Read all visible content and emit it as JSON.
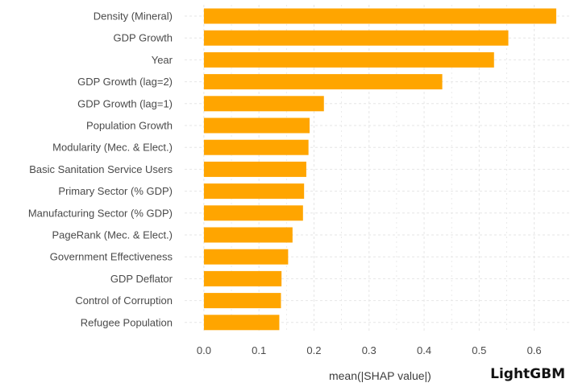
{
  "chart_data": {
    "type": "bar",
    "orientation": "horizontal",
    "categories": [
      "Density (Mineral)",
      "GDP Growth",
      "Year",
      "GDP Growth (lag=2)",
      "GDP Growth (lag=1)",
      "Population Growth",
      "Modularity (Mec. & Elect.)",
      "Basic Sanitation Service Users",
      "Primary Sector (% GDP)",
      "Manufacturing Sector (% GDP)",
      "PageRank (Mec. & Elect.)",
      "Government Effectiveness",
      "GDP Deflator",
      "Control of Corruption",
      "Refugee Population"
    ],
    "values": [
      0.64,
      0.553,
      0.527,
      0.433,
      0.218,
      0.192,
      0.19,
      0.186,
      0.182,
      0.18,
      0.161,
      0.153,
      0.141,
      0.14,
      0.137
    ],
    "xlabel": "mean(|SHAP value|)",
    "ylabel": "",
    "xlim": [
      -0.035,
      0.665
    ],
    "xticks": [
      "0.0",
      "0.1",
      "0.2",
      "0.3",
      "0.4",
      "0.5",
      "0.6"
    ],
    "grid": true,
    "bar_color": "#FFA500",
    "grid_color": "#e6e6e6",
    "model_label": "LightGBM"
  }
}
